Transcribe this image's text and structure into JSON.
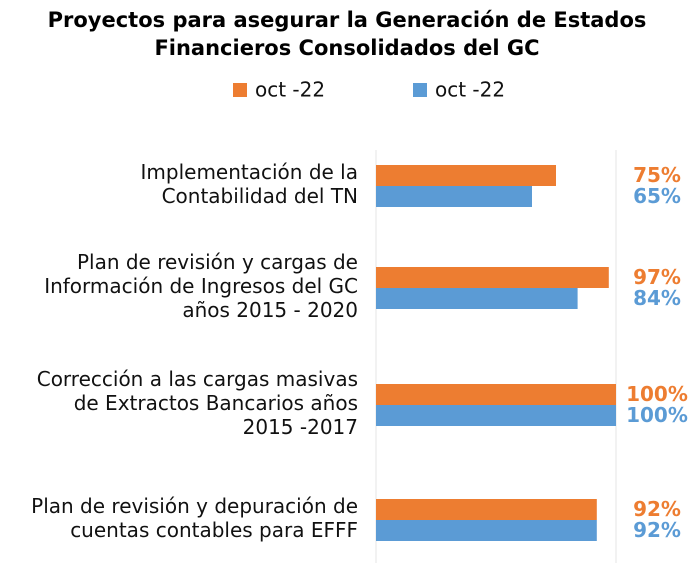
{
  "chart_data": {
    "type": "hbar",
    "title": "Proyectos para asegurar la Generación de Estados\nFinancieros Consolidados del GC",
    "categories": [
      "Implementación de la\nContabilidad del TN",
      "Plan de revisión y cargas de\nInformación de Ingresos del GC\naños 2015 - 2020",
      "Corrección a las cargas masivas\nde Extractos Bancarios años\n2015 -2017",
      "Plan de revisión y depuración de\ncuentas contables para EFFF"
    ],
    "series": [
      {
        "name": "oct -22",
        "color": "#ED7D31",
        "values": [
          75,
          97,
          100,
          92
        ],
        "value_labels": [
          "75%",
          "97%",
          "100%",
          "92%"
        ]
      },
      {
        "name": "oct -22",
        "color": "#5B9BD5",
        "values": [
          65,
          84,
          100,
          92
        ],
        "value_labels": [
          "65%",
          "84%",
          "100%",
          "92%"
        ]
      }
    ],
    "xlim": [
      0,
      100
    ]
  }
}
